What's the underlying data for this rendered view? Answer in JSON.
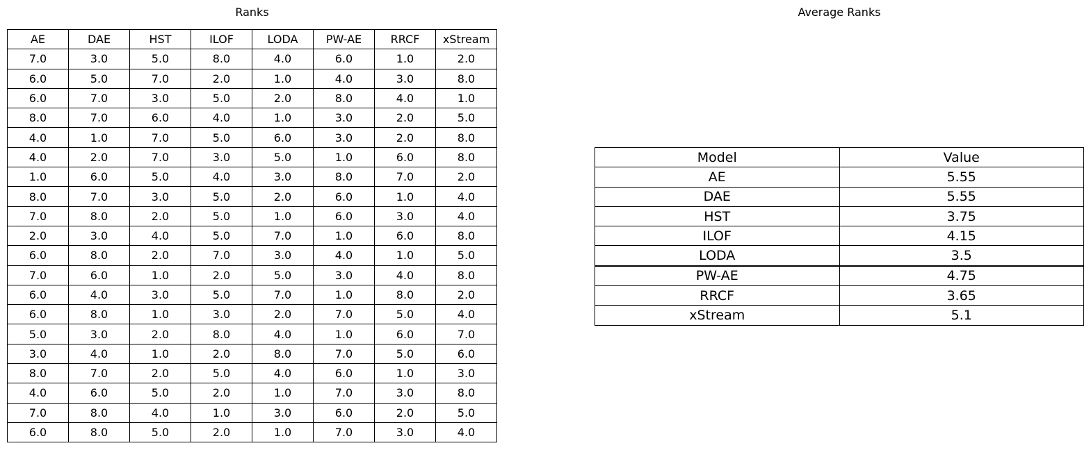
{
  "chart_data": [
    {
      "type": "table",
      "title": "Ranks",
      "columns": [
        "AE",
        "DAE",
        "HST",
        "ILOF",
        "LODA",
        "PW-AE",
        "RRCF",
        "xStream"
      ],
      "rows": [
        [
          "7.0",
          "3.0",
          "5.0",
          "8.0",
          "4.0",
          "6.0",
          "1.0",
          "2.0"
        ],
        [
          "6.0",
          "5.0",
          "7.0",
          "2.0",
          "1.0",
          "4.0",
          "3.0",
          "8.0"
        ],
        [
          "6.0",
          "7.0",
          "3.0",
          "5.0",
          "2.0",
          "8.0",
          "4.0",
          "1.0"
        ],
        [
          "8.0",
          "7.0",
          "6.0",
          "4.0",
          "1.0",
          "3.0",
          "2.0",
          "5.0"
        ],
        [
          "4.0",
          "1.0",
          "7.0",
          "5.0",
          "6.0",
          "3.0",
          "2.0",
          "8.0"
        ],
        [
          "4.0",
          "2.0",
          "7.0",
          "3.0",
          "5.0",
          "1.0",
          "6.0",
          "8.0"
        ],
        [
          "1.0",
          "6.0",
          "5.0",
          "4.0",
          "3.0",
          "8.0",
          "7.0",
          "2.0"
        ],
        [
          "8.0",
          "7.0",
          "3.0",
          "5.0",
          "2.0",
          "6.0",
          "1.0",
          "4.0"
        ],
        [
          "7.0",
          "8.0",
          "2.0",
          "5.0",
          "1.0",
          "6.0",
          "3.0",
          "4.0"
        ],
        [
          "2.0",
          "3.0",
          "4.0",
          "5.0",
          "7.0",
          "1.0",
          "6.0",
          "8.0"
        ],
        [
          "6.0",
          "8.0",
          "2.0",
          "7.0",
          "3.0",
          "4.0",
          "1.0",
          "5.0"
        ],
        [
          "7.0",
          "6.0",
          "1.0",
          "2.0",
          "5.0",
          "3.0",
          "4.0",
          "8.0"
        ],
        [
          "6.0",
          "4.0",
          "3.0",
          "5.0",
          "7.0",
          "1.0",
          "8.0",
          "2.0"
        ],
        [
          "6.0",
          "8.0",
          "1.0",
          "3.0",
          "2.0",
          "7.0",
          "5.0",
          "4.0"
        ],
        [
          "5.0",
          "3.0",
          "2.0",
          "8.0",
          "4.0",
          "1.0",
          "6.0",
          "7.0"
        ],
        [
          "3.0",
          "4.0",
          "1.0",
          "2.0",
          "8.0",
          "7.0",
          "5.0",
          "6.0"
        ],
        [
          "8.0",
          "7.0",
          "2.0",
          "5.0",
          "4.0",
          "6.0",
          "1.0",
          "3.0"
        ],
        [
          "4.0",
          "6.0",
          "5.0",
          "2.0",
          "1.0",
          "7.0",
          "3.0",
          "8.0"
        ],
        [
          "7.0",
          "8.0",
          "4.0",
          "1.0",
          "3.0",
          "6.0",
          "2.0",
          "5.0"
        ],
        [
          "6.0",
          "8.0",
          "5.0",
          "2.0",
          "1.0",
          "7.0",
          "3.0",
          "4.0"
        ]
      ]
    },
    {
      "type": "table",
      "title": "Average Ranks",
      "columns": [
        "Model",
        "Value"
      ],
      "rows": [
        [
          "AE",
          "5.55"
        ],
        [
          "DAE",
          "5.55"
        ],
        [
          "HST",
          "3.75"
        ],
        [
          "ILOF",
          "4.15"
        ],
        [
          "LODA",
          "3.5"
        ],
        [
          "PW-AE",
          "4.75"
        ],
        [
          "RRCF",
          "3.65"
        ],
        [
          "xStream",
          "5.1"
        ]
      ]
    }
  ]
}
